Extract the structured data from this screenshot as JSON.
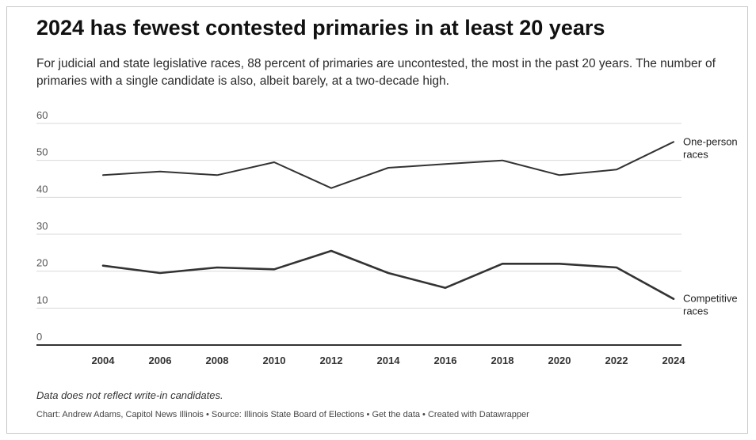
{
  "chart_data": {
    "type": "line",
    "title": "2024 has fewest contested primaries in at least 20 years",
    "subtitle": "For judicial and state legislative races, 88 percent of primaries are uncontested, the most in the past 20 years. The number of primaries with a single candidate is also, albeit barely, at a two-decade high.",
    "x": [
      "2004",
      "2006",
      "2008",
      "2010",
      "2012",
      "2014",
      "2016",
      "2018",
      "2020",
      "2022",
      "2024"
    ],
    "series": [
      {
        "name": "One-person races",
        "label_lines": [
          "One-person",
          "races"
        ],
        "values": [
          46,
          47,
          46,
          49.5,
          42.5,
          48,
          49,
          50,
          46,
          47.5,
          55
        ]
      },
      {
        "name": "Competitive races",
        "label_lines": [
          "Competitive",
          "races"
        ],
        "values": [
          21.5,
          19.5,
          21,
          20.5,
          25.5,
          19.5,
          15.5,
          22,
          22,
          21,
          12.5
        ]
      }
    ],
    "y_ticks": [
      "60",
      "50",
      "40",
      "30",
      "20",
      "10",
      "0"
    ],
    "ylim": [
      0,
      60
    ],
    "xlabel": "",
    "ylabel": "",
    "grid": true,
    "line_color": "#333333",
    "grid_color": "#d9d9d9",
    "axis_color": "#333333"
  },
  "note": "Data does not reflect write-in candidates.",
  "footer": "Chart: Andrew Adams, Capitol News Illinois • Source: Illinois State Board of Elections • Get the data • Created with Datawrapper"
}
